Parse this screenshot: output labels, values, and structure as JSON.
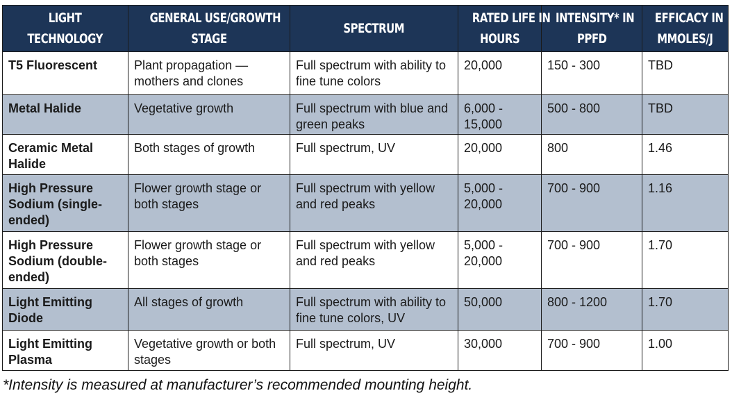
{
  "table": {
    "headers": [
      [
        "Light",
        "Technology"
      ],
      [
        "General Use/Growth",
        "Stage"
      ],
      [
        "Spectrum"
      ],
      [
        "Rated Life in",
        "Hours"
      ],
      [
        "Intensity* in",
        "PPFD"
      ],
      [
        "Efficacy in",
        "µmoles/J"
      ]
    ],
    "rows": [
      [
        "T5 Fluorescent",
        "Plant propagation — mothers and clones",
        "Full spectrum with ability to fine tune colors",
        "20,000",
        "150 - 300",
        "TBD"
      ],
      [
        "Metal Halide",
        "Vegetative growth",
        "Full spectrum with blue and green peaks",
        "6,000 - 15,000",
        "500 - 800",
        "TBD"
      ],
      [
        "Ceramic Metal Halide",
        "Both stages of growth",
        "Full spectrum, UV",
        "20,000",
        "800",
        "1.46"
      ],
      [
        "High Pressure Sodium (single-ended)",
        "Flower growth stage or both stages",
        "Full spectrum with yellow and red peaks",
        "5,000 - 20,000",
        "700 - 900",
        "1.16"
      ],
      [
        "High Pressure Sodium (double-ended)",
        "Flower growth stage or both stages",
        "Full spectrum with yellow and red peaks",
        "5,000 - 20,000",
        "700 - 900",
        "1.70"
      ],
      [
        "Light Emitting Diode",
        "All stages of growth",
        "Full spectrum with ability to fine tune colors, UV",
        "50,000",
        "800 - 1200",
        "1.70"
      ],
      [
        "Light Emitting Plasma",
        "Vegetative growth or both stages",
        "Full spectrum, UV",
        "30,000",
        "700 - 900",
        "1.00"
      ]
    ]
  },
  "colors": {
    "header_bg": "#1d3557",
    "shaded_row_bg": "#b3bfcf"
  },
  "footnote": "*Intensity is measured at manufacturer’s recommended mounting height."
}
